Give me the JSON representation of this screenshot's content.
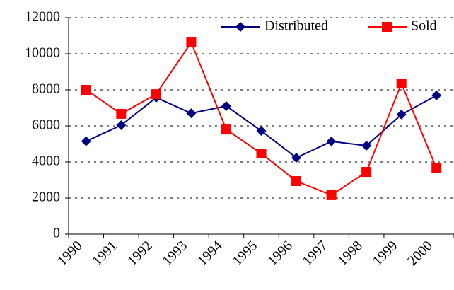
{
  "chart_data": {
    "type": "line",
    "categories": [
      "1990",
      "1991",
      "1992",
      "1993",
      "1994",
      "1995",
      "1996",
      "1997",
      "1998",
      "1999",
      "2000"
    ],
    "series": [
      {
        "name": "Distributed",
        "color": "#000080",
        "marker": "diamond",
        "values": [
          5150,
          6040,
          7570,
          6700,
          7100,
          5725,
          4235,
          5140,
          4900,
          6630,
          7690
        ]
      },
      {
        "name": "Sold",
        "color": "#ff0000",
        "marker": "square",
        "values": [
          8000,
          6670,
          7760,
          10630,
          5800,
          4470,
          2940,
          2160,
          3450,
          8350,
          3650
        ]
      }
    ],
    "ylim": [
      0,
      12000
    ],
    "yticks": [
      0,
      2000,
      4000,
      6000,
      8000,
      10000,
      12000
    ],
    "grid": true,
    "legend": "top-right"
  }
}
